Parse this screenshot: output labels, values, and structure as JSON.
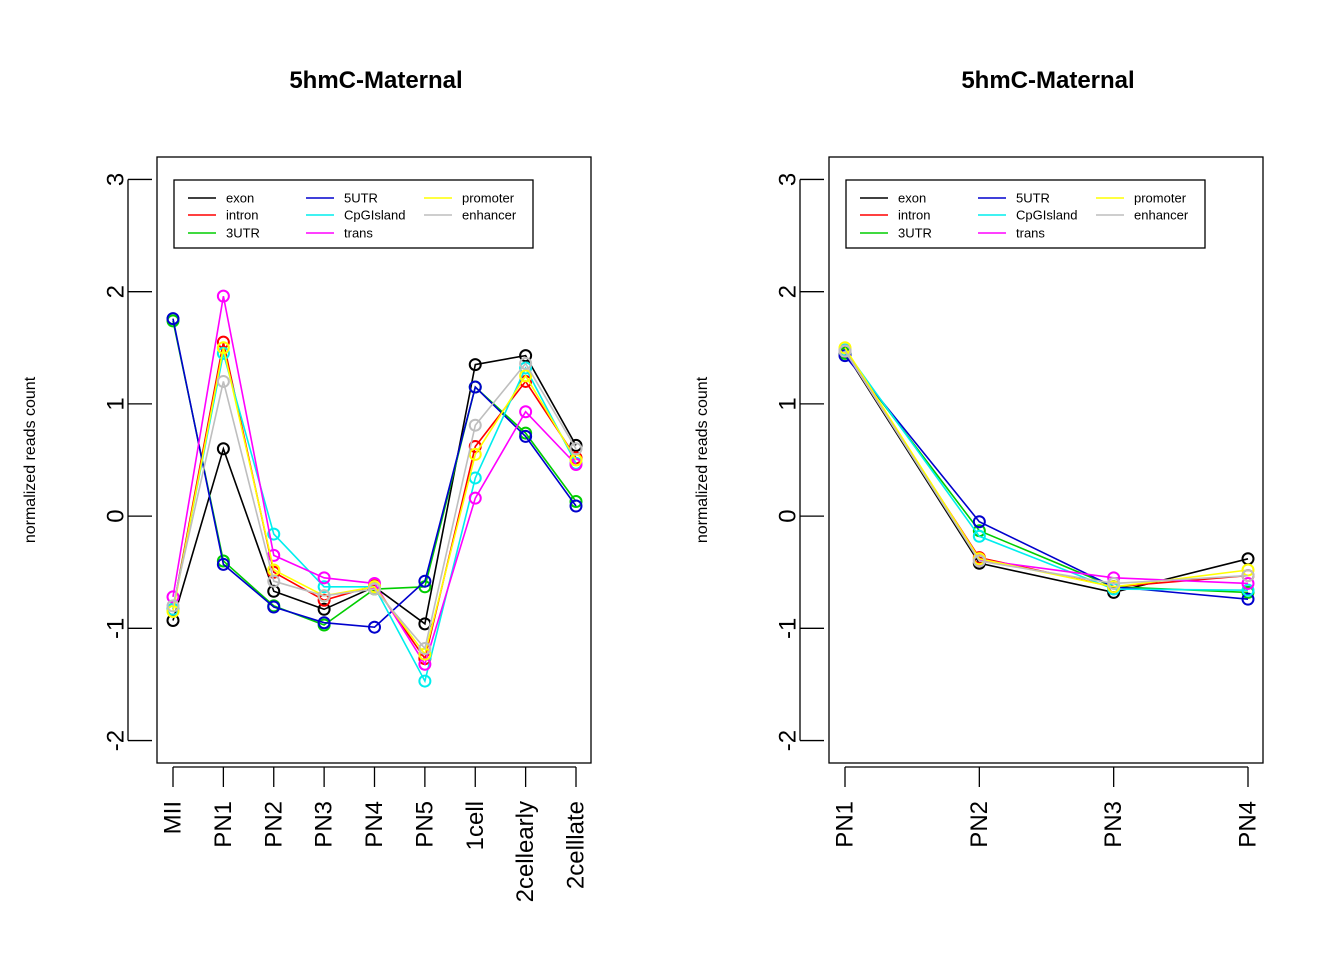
{
  "chart_data": [
    {
      "type": "line",
      "title": "5hmC-Maternal",
      "xlabel": "",
      "ylabel": "normalized reads count",
      "ylim": [
        -2.2,
        3.2
      ],
      "yticks": [
        "-2",
        "-1",
        "0",
        "1",
        "2",
        "3"
      ],
      "categories": [
        "MII",
        "PN1",
        "PN2",
        "PN3",
        "PN4",
        "PN5",
        "1cell",
        "2cellearly",
        "2celllate"
      ],
      "legend_position": "top-left",
      "series": [
        {
          "name": "exon",
          "color": "#000000",
          "values": [
            -0.93,
            0.6,
            -0.67,
            -0.83,
            -0.63,
            -0.96,
            1.35,
            1.43,
            0.63
          ]
        },
        {
          "name": "intron",
          "color": "#ff0000",
          "values": [
            -0.83,
            1.55,
            -0.5,
            -0.75,
            -0.62,
            -1.27,
            0.62,
            1.2,
            0.52
          ]
        },
        {
          "name": "3UTR",
          "color": "#00cd00",
          "values": [
            1.74,
            -0.4,
            -0.8,
            -0.97,
            -0.65,
            -0.63,
            1.15,
            0.74,
            0.13
          ]
        },
        {
          "name": "5UTR",
          "color": "#0000cd",
          "values": [
            1.76,
            -0.43,
            -0.81,
            -0.95,
            -0.99,
            -0.58,
            1.15,
            0.71,
            0.09
          ]
        },
        {
          "name": "CpGIsland",
          "color": "#00eeee",
          "values": [
            -0.83,
            1.45,
            -0.16,
            -0.63,
            -0.63,
            -1.47,
            0.34,
            1.32,
            0.47
          ]
        },
        {
          "name": "trans",
          "color": "#ff00ff",
          "values": [
            -0.72,
            1.96,
            -0.35,
            -0.55,
            -0.6,
            -1.32,
            0.16,
            0.93,
            0.46
          ]
        },
        {
          "name": "promoter",
          "color": "#ffff00",
          "values": [
            -0.85,
            1.5,
            -0.48,
            -0.71,
            -0.63,
            -1.23,
            0.55,
            1.25,
            0.5
          ]
        },
        {
          "name": "enhancer",
          "color": "#bebebe",
          "values": [
            -0.8,
            1.2,
            -0.58,
            -0.71,
            -0.65,
            -1.18,
            0.81,
            1.36,
            0.6
          ]
        }
      ]
    },
    {
      "type": "line",
      "title": "5hmC-Maternal",
      "xlabel": "",
      "ylabel": "normalized reads count",
      "ylim": [
        -2.2,
        3.2
      ],
      "yticks": [
        "-2",
        "-1",
        "0",
        "1",
        "2",
        "3"
      ],
      "categories": [
        "PN1",
        "PN2",
        "PN3",
        "PN4"
      ],
      "legend_position": "top-left",
      "series": [
        {
          "name": "exon",
          "color": "#000000",
          "values": [
            1.46,
            -0.42,
            -0.68,
            -0.38
          ]
        },
        {
          "name": "intron",
          "color": "#ff0000",
          "values": [
            1.47,
            -0.37,
            -0.63,
            -0.53
          ]
        },
        {
          "name": "3UTR",
          "color": "#00cd00",
          "values": [
            1.45,
            -0.13,
            -0.63,
            -0.68
          ]
        },
        {
          "name": "5UTR",
          "color": "#0000cd",
          "values": [
            1.43,
            -0.05,
            -0.63,
            -0.74
          ]
        },
        {
          "name": "CpGIsland",
          "color": "#00eeee",
          "values": [
            1.48,
            -0.18,
            -0.65,
            -0.66
          ]
        },
        {
          "name": "trans",
          "color": "#ff00ff",
          "values": [
            1.47,
            -0.39,
            -0.55,
            -0.6
          ]
        },
        {
          "name": "promoter",
          "color": "#ffff00",
          "values": [
            1.5,
            -0.38,
            -0.63,
            -0.48
          ]
        },
        {
          "name": "enhancer",
          "color": "#bebebe",
          "values": [
            1.47,
            -0.4,
            -0.6,
            -0.53
          ]
        }
      ]
    }
  ]
}
